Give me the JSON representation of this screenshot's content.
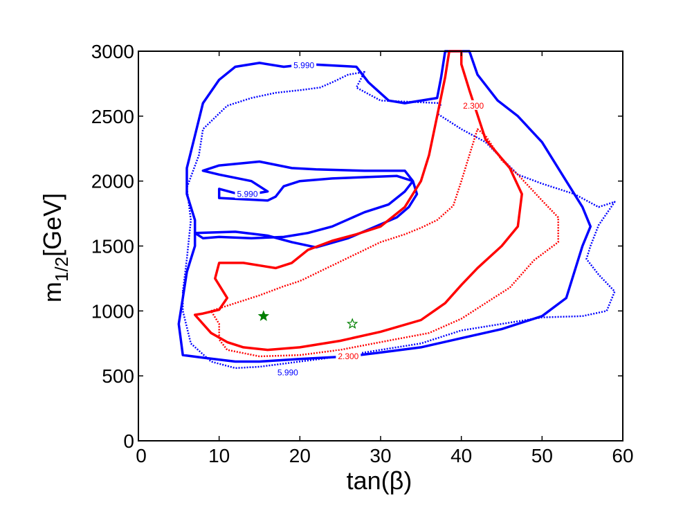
{
  "chart_data": {
    "type": "contour",
    "title": "",
    "xlabel": "tan(β)",
    "ylabel_main": "m",
    "ylabel_sub": "1/2",
    "ylabel_unit": "[GeV]",
    "xlim": [
      0,
      60
    ],
    "ylim": [
      0,
      3000
    ],
    "xticks": [
      0,
      10,
      20,
      30,
      40,
      50,
      60
    ],
    "yticks": [
      0,
      500,
      1000,
      1500,
      2000,
      2500,
      3000
    ],
    "grid": false,
    "colors": {
      "blue": "#0000ff",
      "red": "#ff0000",
      "green": "#007f00"
    },
    "contours": [
      {
        "level": "5.990",
        "color": "blue",
        "style": "solid",
        "id": "blue-outer",
        "points": [
          [
            5.5,
            660
          ],
          [
            8,
            640
          ],
          [
            12,
            610
          ],
          [
            15,
            610
          ],
          [
            20,
            630
          ],
          [
            26,
            650
          ],
          [
            30,
            680
          ],
          [
            35,
            720
          ],
          [
            40,
            790
          ],
          [
            45,
            860
          ],
          [
            50,
            960
          ],
          [
            53,
            1100
          ],
          [
            54,
            1300
          ],
          [
            55,
            1500
          ],
          [
            56,
            1650
          ],
          [
            55,
            1800
          ],
          [
            53,
            2000
          ],
          [
            50,
            2300
          ],
          [
            47,
            2500
          ],
          [
            44.5,
            2620
          ],
          [
            42,
            2820
          ],
          [
            41,
            3000
          ],
          [
            38,
            3000
          ],
          [
            37.5,
            2800
          ],
          [
            37,
            2640
          ],
          [
            33,
            2600
          ],
          [
            31,
            2620
          ],
          [
            28.5,
            2760
          ],
          [
            27,
            2880
          ],
          [
            21,
            2900
          ],
          [
            18,
            2880
          ],
          [
            15,
            2910
          ],
          [
            12,
            2880
          ],
          [
            10,
            2780
          ],
          [
            8,
            2600
          ],
          [
            7,
            2350
          ],
          [
            6,
            2100
          ],
          [
            6,
            1900
          ],
          [
            7,
            1700
          ],
          [
            7,
            1500
          ],
          [
            6,
            1300
          ],
          [
            5.5,
            1100
          ],
          [
            5,
            900
          ],
          [
            5.5,
            660
          ]
        ]
      },
      {
        "level": "5.990",
        "color": "blue",
        "style": "solid",
        "id": "blue-inner",
        "points": [
          [
            7,
            1600
          ],
          [
            12,
            1610
          ],
          [
            16,
            1580
          ],
          [
            19,
            1530
          ],
          [
            22,
            1490
          ],
          [
            26,
            1560
          ],
          [
            29,
            1640
          ],
          [
            32,
            1720
          ],
          [
            33.5,
            1800
          ],
          [
            34.5,
            1900
          ],
          [
            34,
            2000
          ],
          [
            33,
            2080
          ],
          [
            28,
            2080
          ],
          [
            22,
            2090
          ],
          [
            19,
            2100
          ],
          [
            15,
            2150
          ],
          [
            10,
            2120
          ],
          [
            8,
            2080
          ],
          [
            10,
            2050
          ],
          [
            14,
            2000
          ],
          [
            16,
            1920
          ],
          [
            13,
            1890
          ],
          [
            10,
            1940
          ],
          [
            10,
            1870
          ],
          [
            16,
            1850
          ],
          [
            17,
            1880
          ],
          [
            18,
            1960
          ],
          [
            20,
            2000
          ],
          [
            24,
            2020
          ],
          [
            28,
            2030
          ],
          [
            32,
            2040
          ],
          [
            34,
            2000
          ],
          [
            33,
            1920
          ],
          [
            31,
            1820
          ],
          [
            28,
            1760
          ],
          [
            24,
            1650
          ],
          [
            21,
            1600
          ],
          [
            18,
            1570
          ],
          [
            14,
            1560
          ],
          [
            10,
            1570
          ],
          [
            8,
            1560
          ],
          [
            7,
            1600
          ]
        ]
      },
      {
        "level": "5.990",
        "color": "blue",
        "style": "dotted",
        "id": "blue-dotted",
        "points": [
          [
            5.5,
            1150
          ],
          [
            6,
            1400
          ],
          [
            6.5,
            1700
          ],
          [
            6,
            1950
          ],
          [
            7.5,
            2200
          ],
          [
            8,
            2400
          ],
          [
            11,
            2580
          ],
          [
            14,
            2640
          ],
          [
            17,
            2680
          ],
          [
            20,
            2700
          ],
          [
            22.5,
            2720
          ],
          [
            24,
            2760
          ],
          [
            26,
            2820
          ],
          [
            28,
            2840
          ],
          [
            27,
            2720
          ],
          [
            30,
            2620
          ],
          [
            37.5,
            2600
          ],
          [
            37,
            2520
          ],
          [
            40,
            2400
          ],
          [
            43,
            2300
          ],
          [
            47,
            2050
          ],
          [
            50,
            1980
          ],
          [
            54,
            1900
          ],
          [
            57,
            1800
          ],
          [
            59,
            1840
          ],
          [
            57,
            1660
          ],
          [
            56,
            1500
          ],
          [
            55.5,
            1400
          ],
          [
            57,
            1280
          ],
          [
            59,
            1150
          ],
          [
            58,
            1000
          ],
          [
            55,
            960
          ],
          [
            50,
            950
          ],
          [
            45,
            900
          ],
          [
            40,
            850
          ],
          [
            35,
            750
          ],
          [
            30,
            700
          ],
          [
            25,
            650
          ],
          [
            20,
            610
          ],
          [
            15,
            570
          ],
          [
            12,
            560
          ],
          [
            9,
            610
          ],
          [
            6.5,
            750
          ],
          [
            5.5,
            1000
          ],
          [
            5.5,
            1150
          ]
        ]
      },
      {
        "level": "2.300",
        "color": "red",
        "style": "solid",
        "id": "red-solid",
        "points": [
          [
            7,
            970
          ],
          [
            9,
            830
          ],
          [
            11,
            760
          ],
          [
            13,
            720
          ],
          [
            16,
            700
          ],
          [
            20,
            720
          ],
          [
            25,
            770
          ],
          [
            30,
            840
          ],
          [
            35,
            930
          ],
          [
            38,
            1060
          ],
          [
            40,
            1200
          ],
          [
            42,
            1330
          ],
          [
            45,
            1500
          ],
          [
            47,
            1650
          ],
          [
            47.5,
            1900
          ],
          [
            46,
            2100
          ],
          [
            43,
            2320
          ],
          [
            41,
            2700
          ],
          [
            40,
            2900
          ],
          [
            40,
            3000
          ],
          [
            38.5,
            3000
          ],
          [
            38,
            2800
          ],
          [
            37,
            2500
          ],
          [
            36,
            2200
          ],
          [
            35,
            2000
          ],
          [
            33,
            1800
          ],
          [
            30,
            1650
          ],
          [
            27,
            1590
          ],
          [
            24,
            1540
          ],
          [
            21,
            1470
          ],
          [
            19,
            1370
          ],
          [
            17,
            1330
          ],
          [
            13,
            1370
          ],
          [
            10,
            1370
          ],
          [
            9.5,
            1250
          ],
          [
            11,
            1100
          ],
          [
            10,
            1010
          ],
          [
            8,
            980
          ],
          [
            7,
            970
          ]
        ]
      },
      {
        "level": "2.300",
        "color": "red",
        "style": "dotted",
        "id": "red-dotted",
        "points": [
          [
            9,
            1000
          ],
          [
            12,
            1060
          ],
          [
            15,
            1120
          ],
          [
            18,
            1190
          ],
          [
            20,
            1230
          ],
          [
            23,
            1320
          ],
          [
            26,
            1410
          ],
          [
            30,
            1530
          ],
          [
            33,
            1590
          ],
          [
            35,
            1640
          ],
          [
            37,
            1700
          ],
          [
            39,
            1810
          ],
          [
            40,
            2000
          ],
          [
            41,
            2200
          ],
          [
            42,
            2400
          ],
          [
            43,
            2350
          ],
          [
            45,
            2160
          ],
          [
            47,
            2050
          ],
          [
            50,
            1850
          ],
          [
            52,
            1720
          ],
          [
            52,
            1530
          ],
          [
            49,
            1390
          ],
          [
            46,
            1180
          ],
          [
            44,
            1100
          ],
          [
            40,
            940
          ],
          [
            36,
            830
          ],
          [
            30,
            760
          ],
          [
            25,
            700
          ],
          [
            20,
            660
          ],
          [
            15,
            650
          ],
          [
            11,
            700
          ],
          [
            10,
            780
          ],
          [
            10,
            900
          ],
          [
            9,
            1000
          ]
        ]
      }
    ],
    "contour_labels": [
      {
        "text": "5.990",
        "x": 20.5,
        "y": 2890,
        "color": "blue"
      },
      {
        "text": "5.990",
        "x": 13.5,
        "y": 1900,
        "color": "blue"
      },
      {
        "text": "5.990",
        "x": 18.5,
        "y": 525,
        "color": "blue"
      },
      {
        "text": "2.300",
        "x": 41.5,
        "y": 2580,
        "color": "red"
      },
      {
        "text": "2.300",
        "x": 26,
        "y": 650,
        "color": "red"
      }
    ],
    "markers": [
      {
        "type": "filled-star",
        "x": 15.5,
        "y": 960,
        "color": "green"
      },
      {
        "type": "open-star",
        "x": 26.5,
        "y": 900,
        "color": "green"
      }
    ]
  }
}
